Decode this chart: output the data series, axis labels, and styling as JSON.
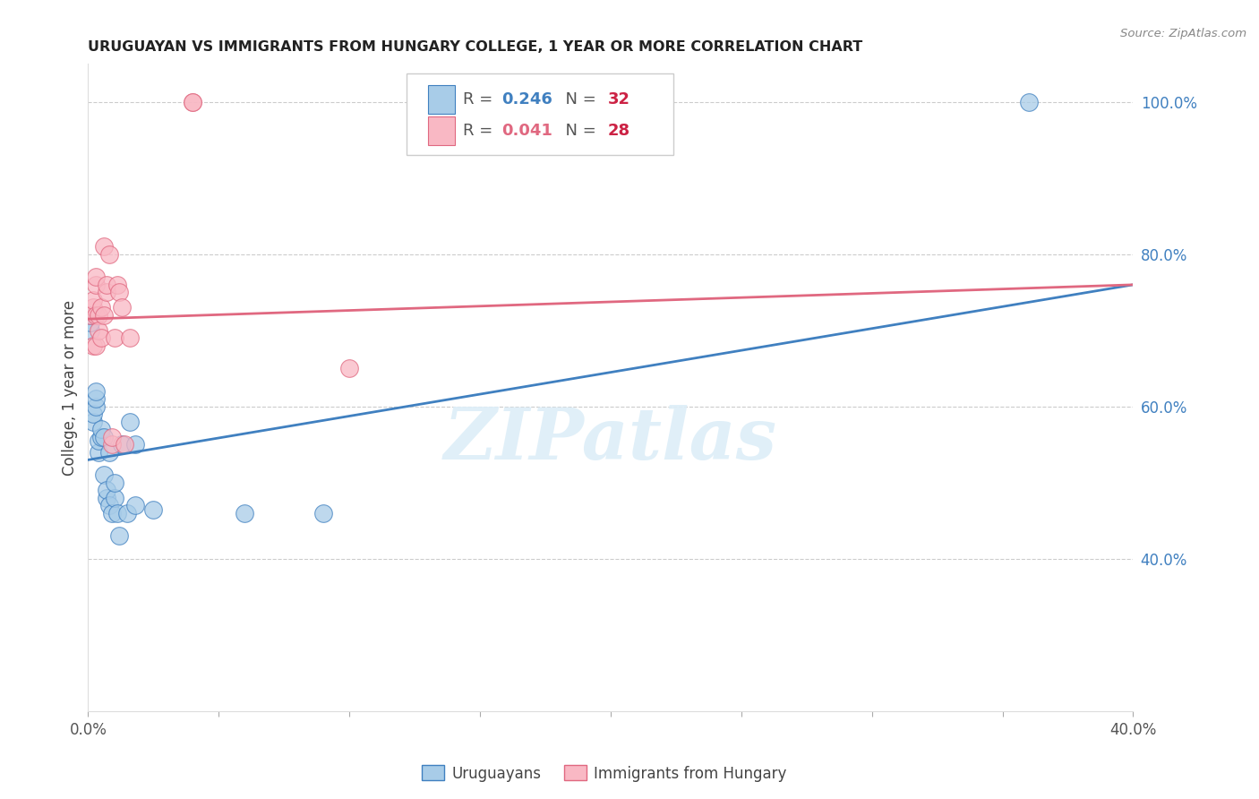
{
  "title": "URUGUAYAN VS IMMIGRANTS FROM HUNGARY COLLEGE, 1 YEAR OR MORE CORRELATION CHART",
  "source_text": "Source: ZipAtlas.com",
  "ylabel": "College, 1 year or more",
  "xlim": [
    0.0,
    0.4
  ],
  "ylim": [
    0.2,
    1.05
  ],
  "x_ticks": [
    0.0,
    0.05,
    0.1,
    0.15,
    0.2,
    0.25,
    0.3,
    0.35,
    0.4
  ],
  "x_tick_labels_show": {
    "0": "0.0%",
    "8": "40.0%"
  },
  "y_ticks_right": [
    0.4,
    0.6,
    0.8,
    1.0
  ],
  "y_tick_labels_right": [
    "40.0%",
    "60.0%",
    "80.0%",
    "100.0%"
  ],
  "blue_color": "#a8cce8",
  "pink_color": "#f9b8c4",
  "blue_line_color": "#4080c0",
  "pink_line_color": "#e06880",
  "legend_R_color_blue": "#4080c0",
  "legend_N_color_blue": "#cc2244",
  "legend_R_color_pink": "#e06880",
  "legend_N_color_pink": "#cc2244",
  "watermark": "ZIPatlas",
  "blue_x": [
    0.001,
    0.001,
    0.001,
    0.002,
    0.002,
    0.003,
    0.003,
    0.003,
    0.004,
    0.004,
    0.005,
    0.005,
    0.006,
    0.006,
    0.007,
    0.007,
    0.008,
    0.008,
    0.009,
    0.01,
    0.01,
    0.011,
    0.012,
    0.013,
    0.015,
    0.016,
    0.018,
    0.018,
    0.025,
    0.06,
    0.09,
    0.36
  ],
  "blue_y": [
    0.7,
    0.71,
    0.72,
    0.58,
    0.59,
    0.6,
    0.61,
    0.62,
    0.54,
    0.555,
    0.56,
    0.57,
    0.51,
    0.56,
    0.48,
    0.49,
    0.47,
    0.54,
    0.46,
    0.48,
    0.5,
    0.46,
    0.43,
    0.55,
    0.46,
    0.58,
    0.47,
    0.55,
    0.465,
    0.46,
    0.46,
    1.0
  ],
  "pink_x": [
    0.001,
    0.002,
    0.002,
    0.002,
    0.003,
    0.003,
    0.003,
    0.003,
    0.004,
    0.004,
    0.005,
    0.005,
    0.006,
    0.006,
    0.007,
    0.007,
    0.008,
    0.009,
    0.009,
    0.01,
    0.011,
    0.012,
    0.013,
    0.014,
    0.016,
    0.04,
    0.04,
    0.1
  ],
  "pink_y": [
    0.72,
    0.73,
    0.74,
    0.68,
    0.76,
    0.77,
    0.72,
    0.68,
    0.72,
    0.7,
    0.69,
    0.73,
    0.81,
    0.72,
    0.75,
    0.76,
    0.8,
    0.55,
    0.56,
    0.69,
    0.76,
    0.75,
    0.73,
    0.55,
    0.69,
    1.0,
    1.0,
    0.65
  ],
  "blue_trend_x": [
    0.0,
    0.4
  ],
  "blue_trend_y": [
    0.53,
    0.76
  ],
  "pink_trend_y": [
    0.715,
    0.76
  ],
  "bottom_labels": [
    "Uruguayans",
    "Immigrants from Hungary"
  ]
}
